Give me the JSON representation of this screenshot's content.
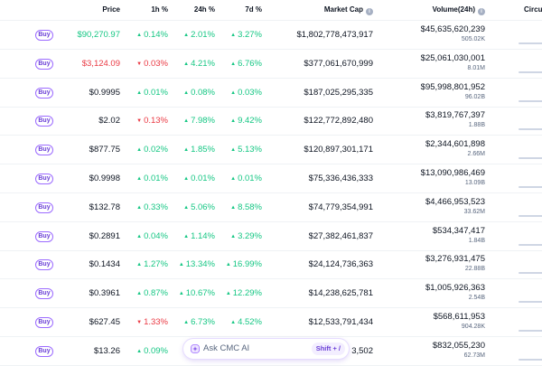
{
  "header": {
    "price": "Price",
    "change_1h": "1h %",
    "change_24h": "24h %",
    "change_7d": "7d %",
    "market_cap": "Market Cap",
    "volume_24h": "Volume(24h)",
    "circulating": "Circu"
  },
  "buy_label": "Buy",
  "rows": [
    {
      "price": "$90,270.97",
      "price_dir": "up",
      "h1": "0.14%",
      "h1_dir": "up",
      "h24": "2.01%",
      "h24_dir": "up",
      "d7": "3.27%",
      "d7_dir": "up",
      "market_cap": "$1,802,778,473,917",
      "volume": "$45,635,620,239",
      "volume_coin": "505.02K"
    },
    {
      "price": "$3,124.09",
      "price_dir": "down",
      "h1": "0.03%",
      "h1_dir": "down",
      "h24": "4.21%",
      "h24_dir": "up",
      "d7": "6.76%",
      "d7_dir": "up",
      "market_cap": "$377,061,670,999",
      "volume": "$25,061,030,001",
      "volume_coin": "8.01M"
    },
    {
      "price": "$0.9995",
      "price_dir": "none",
      "h1": "0.01%",
      "h1_dir": "up",
      "h24": "0.08%",
      "h24_dir": "up",
      "d7": "0.03%",
      "d7_dir": "up",
      "market_cap": "$187,025,295,335",
      "volume": "$95,998,801,952",
      "volume_coin": "96.02B"
    },
    {
      "price": "$2.02",
      "price_dir": "none",
      "h1": "0.13%",
      "h1_dir": "down",
      "h24": "7.98%",
      "h24_dir": "up",
      "d7": "9.42%",
      "d7_dir": "up",
      "market_cap": "$122,772,892,480",
      "volume": "$3,819,767,397",
      "volume_coin": "1.88B"
    },
    {
      "price": "$877.75",
      "price_dir": "none",
      "h1": "0.02%",
      "h1_dir": "up",
      "h24": "1.85%",
      "h24_dir": "up",
      "d7": "5.13%",
      "d7_dir": "up",
      "market_cap": "$120,897,301,171",
      "volume": "$2,344,601,898",
      "volume_coin": "2.66M"
    },
    {
      "price": "$0.9998",
      "price_dir": "none",
      "h1": "0.01%",
      "h1_dir": "up",
      "h24": "0.01%",
      "h24_dir": "up",
      "d7": "0.01%",
      "d7_dir": "up",
      "market_cap": "$75,336,436,333",
      "volume": "$13,090,986,469",
      "volume_coin": "13.09B"
    },
    {
      "price": "$132.78",
      "price_dir": "none",
      "h1": "0.33%",
      "h1_dir": "up",
      "h24": "5.06%",
      "h24_dir": "up",
      "d7": "8.58%",
      "d7_dir": "up",
      "market_cap": "$74,779,354,991",
      "volume": "$4,466,953,523",
      "volume_coin": "33.62M"
    },
    {
      "price": "$0.2891",
      "price_dir": "none",
      "h1": "0.04%",
      "h1_dir": "up",
      "h24": "1.14%",
      "h24_dir": "up",
      "d7": "3.29%",
      "d7_dir": "up",
      "market_cap": "$27,382,461,837",
      "volume": "$534,347,417",
      "volume_coin": "1.84B"
    },
    {
      "price": "$0.1434",
      "price_dir": "none",
      "h1": "1.27%",
      "h1_dir": "up",
      "h24": "13.34%",
      "h24_dir": "up",
      "d7": "16.99%",
      "d7_dir": "up",
      "market_cap": "$24,124,736,363",
      "volume": "$3,276,931,475",
      "volume_coin": "22.88B"
    },
    {
      "price": "$0.3961",
      "price_dir": "none",
      "h1": "0.87%",
      "h1_dir": "up",
      "h24": "10.67%",
      "h24_dir": "up",
      "d7": "12.29%",
      "d7_dir": "up",
      "market_cap": "$14,238,625,781",
      "volume": "$1,005,926,363",
      "volume_coin": "2.54B"
    },
    {
      "price": "$627.45",
      "price_dir": "none",
      "h1": "1.33%",
      "h1_dir": "down",
      "h24": "6.73%",
      "h24_dir": "up",
      "d7": "4.52%",
      "d7_dir": "up",
      "market_cap": "$12,533,791,434",
      "volume": "$568,611,953",
      "volume_coin": "904.28K"
    },
    {
      "price": "$13.26",
      "price_dir": "none",
      "h1": "0.09%",
      "h1_dir": "up",
      "h24": "",
      "h24_dir": "up",
      "d7": "",
      "d7_dir": "up",
      "market_cap": "3,502",
      "volume": "$832,055,230",
      "volume_coin": "62.73M"
    }
  ],
  "ask_ai": {
    "label": "Ask CMC AI",
    "shortcut": "Shift + /"
  },
  "colors": {
    "up": "#16c784",
    "down": "#ea3943",
    "accent": "#6a3fd6"
  }
}
